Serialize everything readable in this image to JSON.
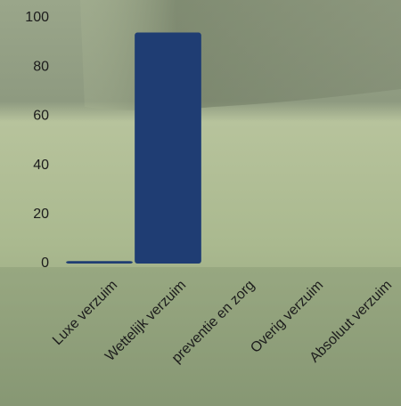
{
  "chart_data": {
    "type": "bar",
    "categories": [
      "Luxe verzuim",
      "Wettelijk verzuim",
      "preventie en zorg",
      "Overig verzuim",
      "Absoluut verzuim"
    ],
    "values": [
      1,
      94,
      0,
      0,
      0
    ],
    "color": "#1f3d73",
    "ylim": [
      0,
      100
    ],
    "yticks": [
      0,
      20,
      40,
      60,
      80,
      100
    ],
    "grid": false
  }
}
